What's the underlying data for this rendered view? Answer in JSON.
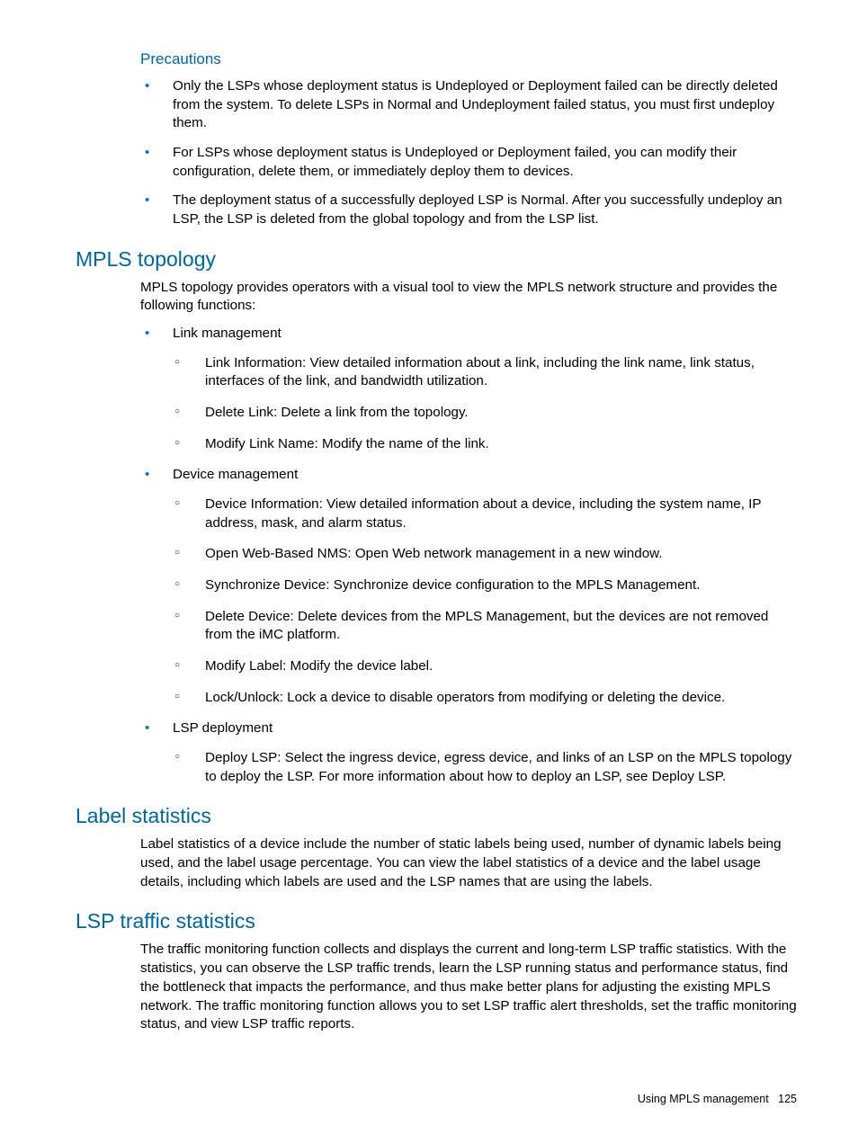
{
  "colors": {
    "heading": "#006699",
    "bullet": "#0073cf",
    "text": "#000000",
    "background": "#ffffff"
  },
  "typography": {
    "section_heading_fontsize": 23,
    "sub_heading_fontsize": 17,
    "body_fontsize": 15.2,
    "footer_fontsize": 12.5,
    "font_family": "Arial, Helvetica, sans-serif"
  },
  "precautions": {
    "heading": "Precautions",
    "items": [
      "Only the LSPs whose deployment status is Undeployed or Deployment failed can be directly deleted from the system. To delete LSPs in Normal and Undeployment failed status, you must first undeploy them.",
      "For LSPs whose deployment status is Undeployed or Deployment failed, you can modify their configuration, delete them, or immediately deploy them to devices.",
      "The deployment status of a successfully deployed LSP is Normal. After you successfully undeploy an LSP, the LSP is deleted from the global topology and from the LSP list."
    ]
  },
  "mpls_topology": {
    "heading": "MPLS topology",
    "intro": "MPLS topology provides operators with a visual tool to view the MPLS network structure and provides the following functions:",
    "items": [
      {
        "label": "Link management",
        "sub": [
          "Link Information: View detailed information about a link, including the link name, link status, interfaces of the link, and bandwidth utilization.",
          "Delete Link: Delete a link from the topology.",
          "Modify Link Name: Modify the name of the link."
        ]
      },
      {
        "label": "Device management",
        "sub": [
          "Device Information: View detailed information about a device, including the system name, IP address, mask, and alarm status.",
          "Open Web-Based NMS: Open Web network management in a new window.",
          "Synchronize Device: Synchronize device configuration to the MPLS Management.",
          "Delete Device: Delete devices from the MPLS Management, but the devices are not removed from the iMC platform.",
          "Modify Label: Modify the device label.",
          "Lock/Unlock: Lock a device to disable operators from modifying or deleting the device."
        ]
      },
      {
        "label": "LSP deployment",
        "sub": [
          "Deploy LSP: Select the ingress device, egress device, and links of an LSP on the MPLS topology to deploy the LSP. For more information about how to deploy an LSP, see Deploy LSP."
        ]
      }
    ]
  },
  "label_stats": {
    "heading": "Label statistics",
    "body": "Label statistics of a device include the number of static labels being used, number of dynamic labels being used, and the label usage percentage. You can view the label statistics of a device and the label usage details, including which labels are used and the LSP names that are using the labels."
  },
  "lsp_traffic": {
    "heading": "LSP traffic statistics",
    "body": "The traffic monitoring function collects and displays the current and long-term LSP traffic statistics. With the statistics, you can observe the LSP traffic trends, learn the LSP running status and performance status, find the bottleneck that impacts the performance, and thus make better plans for adjusting the existing MPLS network. The traffic monitoring function allows you to set LSP traffic alert thresholds, set the traffic monitoring status, and view LSP traffic reports."
  },
  "footer": {
    "text": "Using MPLS management",
    "page": "125"
  }
}
